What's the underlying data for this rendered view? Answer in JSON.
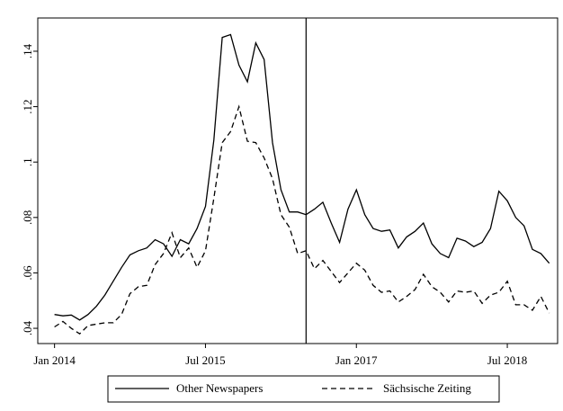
{
  "chart_data": {
    "type": "line",
    "x": [
      "2014-01",
      "2014-02",
      "2014-03",
      "2014-04",
      "2014-05",
      "2014-06",
      "2014-07",
      "2014-08",
      "2014-09",
      "2014-10",
      "2014-11",
      "2014-12",
      "2015-01",
      "2015-02",
      "2015-03",
      "2015-04",
      "2015-05",
      "2015-06",
      "2015-07",
      "2015-08",
      "2015-09",
      "2015-10",
      "2015-11",
      "2015-12",
      "2016-01",
      "2016-02",
      "2016-03",
      "2016-04",
      "2016-05",
      "2016-06",
      "2016-07",
      "2016-08",
      "2016-09",
      "2016-10",
      "2016-11",
      "2016-12",
      "2017-01",
      "2017-02",
      "2017-03",
      "2017-04",
      "2017-05",
      "2017-06",
      "2017-07",
      "2017-08",
      "2017-09",
      "2017-10",
      "2017-11",
      "2017-12",
      "2018-01",
      "2018-02",
      "2018-03",
      "2018-04",
      "2018-05",
      "2018-06",
      "2018-07",
      "2018-08",
      "2018-09",
      "2018-10",
      "2018-11",
      "2018-12"
    ],
    "series": [
      {
        "name": "Other Newspapers",
        "color": "#000000",
        "dash": "solid",
        "values": [
          0.045,
          0.0445,
          0.0448,
          0.043,
          0.045,
          0.048,
          0.052,
          0.057,
          0.062,
          0.0665,
          0.068,
          0.069,
          0.072,
          0.0705,
          0.066,
          0.072,
          0.0705,
          0.076,
          0.084,
          0.108,
          0.145,
          0.146,
          0.135,
          0.129,
          0.143,
          0.137,
          0.107,
          0.09,
          0.082,
          0.082,
          0.081,
          0.083,
          0.0855,
          0.078,
          0.071,
          0.083,
          0.09,
          0.081,
          0.076,
          0.075,
          0.0755,
          0.069,
          0.073,
          0.075,
          0.078,
          0.0705,
          0.067,
          0.0655,
          0.0725,
          0.0715,
          0.0695,
          0.071,
          0.076,
          0.0895,
          0.086,
          0.08,
          0.077,
          0.0685,
          0.067,
          0.0635
        ]
      },
      {
        "name": "Sächsische Zeiting",
        "color": "#000000",
        "dash": "dashed",
        "values": [
          0.0405,
          0.0425,
          0.04,
          0.038,
          0.041,
          0.0415,
          0.042,
          0.042,
          0.045,
          0.0525,
          0.055,
          0.0555,
          0.063,
          0.067,
          0.0745,
          0.0655,
          0.069,
          0.062,
          0.068,
          0.087,
          0.107,
          0.111,
          0.12,
          0.1075,
          0.107,
          0.1015,
          0.094,
          0.081,
          0.0765,
          0.067,
          0.068,
          0.0615,
          0.0645,
          0.0605,
          0.0565,
          0.06,
          0.0635,
          0.061,
          0.0555,
          0.053,
          0.0535,
          0.0495,
          0.0515,
          0.054,
          0.0595,
          0.055,
          0.053,
          0.0495,
          0.0535,
          0.053,
          0.0535,
          0.049,
          0.052,
          0.053,
          0.057,
          0.0485,
          0.0485,
          0.0465,
          0.0515,
          0.0455
        ]
      }
    ],
    "xlim": [
      "2013-11",
      "2019-01"
    ],
    "xticks": [
      {
        "value": "2014-01",
        "label": "Jan 2014"
      },
      {
        "value": "2015-07",
        "label": "Jul 2015"
      },
      {
        "value": "2017-01",
        "label": "Jan 2017"
      },
      {
        "value": "2018-07",
        "label": "Jul 2018"
      }
    ],
    "ylim": [
      0.0345,
      0.152
    ],
    "yticks": [
      {
        "value": 0.04,
        "label": ".04"
      },
      {
        "value": 0.06,
        "label": ".06"
      },
      {
        "value": 0.08,
        "label": ".08"
      },
      {
        "value": 0.1,
        "label": ".1"
      },
      {
        "value": 0.12,
        "label": ".12"
      },
      {
        "value": 0.14,
        "label": ".14"
      }
    ],
    "vline": "2016-07",
    "grid": false,
    "legend": "bottom"
  }
}
